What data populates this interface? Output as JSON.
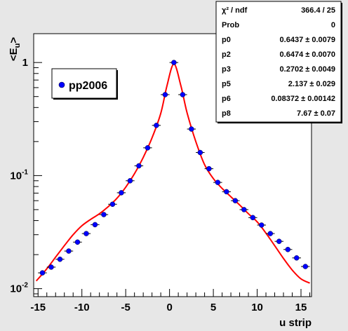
{
  "chart_data": {
    "type": "scatter",
    "log_y": true,
    "xlim": [
      -15.5,
      16.2
    ],
    "ylim": [
      0.0085,
      1.8
    ],
    "x_ticks": [
      {
        "value": -15,
        "label": "-15"
      },
      {
        "value": -10,
        "label": "-10"
      },
      {
        "value": -5,
        "label": "-5"
      },
      {
        "value": 0,
        "label": "0"
      },
      {
        "value": 5,
        "label": "5"
      },
      {
        "value": 10,
        "label": "10"
      },
      {
        "value": 15,
        "label": "15"
      }
    ],
    "y_major_ticks": [
      {
        "value": 0.01,
        "base": "10",
        "exp": "-2"
      },
      {
        "value": 0.1,
        "base": "10",
        "exp": "-1"
      },
      {
        "value": 1,
        "base": "1",
        "exp": ""
      }
    ],
    "xlabel": "u strip",
    "ylabel": {
      "main": "<E",
      "sub": "u",
      "close": ">"
    },
    "legend": {
      "entries": [
        "pp2006"
      ],
      "placement": "top-left"
    },
    "stats_box": {
      "placement": "top-right",
      "rows": [
        {
          "name": "χ² / ndf",
          "value": "366.4 / 25"
        },
        {
          "name": "Prob",
          "value": "0"
        },
        {
          "name": "p0",
          "value": "0.6437 ± 0.0079"
        },
        {
          "name": "p2",
          "value": "0.6474 ± 0.0070"
        },
        {
          "name": "p3",
          "value": "0.2702 ± 0.0049"
        },
        {
          "name": "p5",
          "value": "2.137 ± 0.029"
        },
        {
          "name": "p6",
          "value": "0.08372 ± 0.00142"
        },
        {
          "name": "p8",
          "value": "7.67 ± 0.07"
        }
      ]
    },
    "series": [
      {
        "name": "pp2006",
        "color": "#0000ff",
        "points": [
          [
            -14.5,
            0.0138
          ],
          [
            -13.5,
            0.0155
          ],
          [
            -12.5,
            0.0182
          ],
          [
            -11.5,
            0.0215
          ],
          [
            -10.5,
            0.0258
          ],
          [
            -9.5,
            0.0307
          ],
          [
            -8.5,
            0.0368
          ],
          [
            -7.5,
            0.0452
          ],
          [
            -6.5,
            0.0558
          ],
          [
            -5.5,
            0.0705
          ],
          [
            -4.5,
            0.09
          ],
          [
            -3.5,
            0.122
          ],
          [
            -2.5,
            0.176
          ],
          [
            -1.5,
            0.278
          ],
          [
            -0.5,
            0.52
          ],
          [
            0.5,
            1.0
          ],
          [
            1.5,
            0.52
          ],
          [
            2.5,
            0.258
          ],
          [
            3.5,
            0.16
          ],
          [
            4.5,
            0.115
          ],
          [
            5.5,
            0.087
          ],
          [
            6.5,
            0.072
          ],
          [
            7.5,
            0.06
          ],
          [
            8.5,
            0.05
          ],
          [
            9.5,
            0.0425
          ],
          [
            10.5,
            0.0365
          ],
          [
            11.5,
            0.0307
          ],
          [
            12.5,
            0.0262
          ],
          [
            13.5,
            0.0222
          ],
          [
            14.5,
            0.0187
          ],
          [
            15.5,
            0.0157
          ]
        ]
      }
    ],
    "fit_curve": {
      "color": "#ff0000",
      "points": [
        [
          -15.2,
          0.0117
        ],
        [
          -14,
          0.015
        ],
        [
          -13,
          0.019
        ],
        [
          -12,
          0.024
        ],
        [
          -11,
          0.03
        ],
        [
          -10,
          0.036
        ],
        [
          -9,
          0.041
        ],
        [
          -8,
          0.046
        ],
        [
          -7,
          0.053
        ],
        [
          -6,
          0.063
        ],
        [
          -5,
          0.079
        ],
        [
          -4,
          0.104
        ],
        [
          -3,
          0.145
        ],
        [
          -2,
          0.215
        ],
        [
          -1,
          0.355
        ],
        [
          -0.3,
          0.62
        ],
        [
          0.5,
          0.97
        ],
        [
          1.3,
          0.62
        ],
        [
          2,
          0.36
        ],
        [
          3,
          0.2
        ],
        [
          4,
          0.125
        ],
        [
          5,
          0.094
        ],
        [
          6,
          0.077
        ],
        [
          7,
          0.065
        ],
        [
          8,
          0.055
        ],
        [
          9,
          0.046
        ],
        [
          10,
          0.039
        ],
        [
          11,
          0.031
        ],
        [
          12,
          0.024
        ],
        [
          13,
          0.0185
        ],
        [
          14,
          0.0146
        ],
        [
          15,
          0.0122
        ],
        [
          16,
          0.0112
        ]
      ]
    }
  }
}
